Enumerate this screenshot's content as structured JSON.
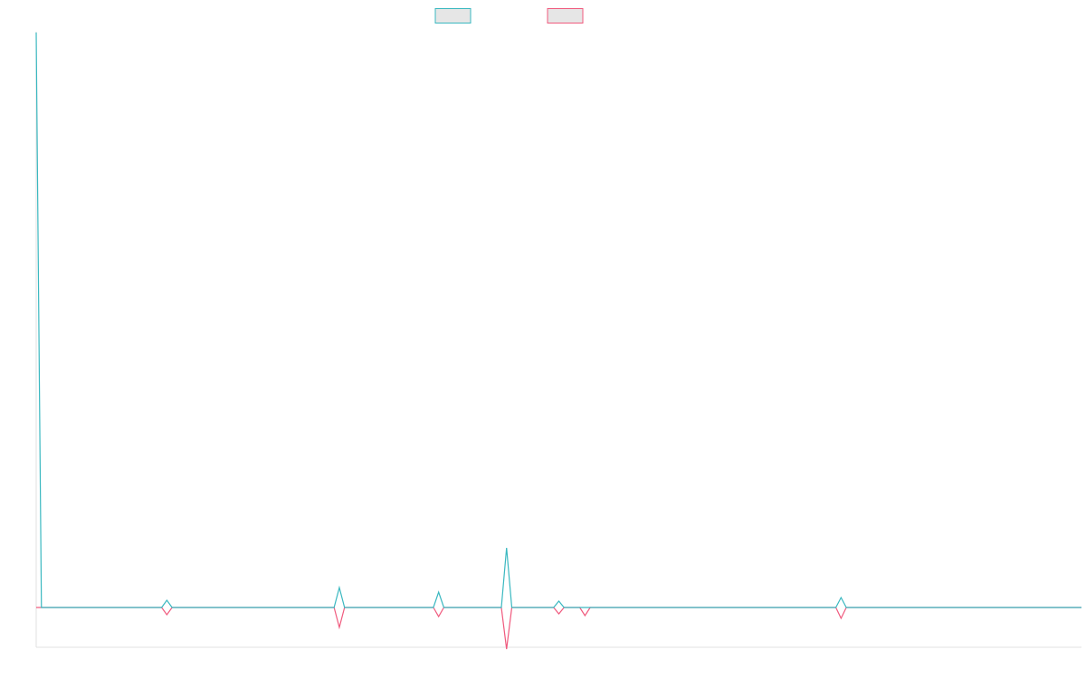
{
  "chart_data": {
    "type": "line",
    "x": [
      0,
      1,
      24,
      25,
      26,
      57,
      58,
      59,
      76,
      77,
      78,
      89,
      90,
      91,
      99,
      100,
      101,
      104,
      105,
      106,
      153,
      154,
      155,
      200
    ],
    "series": [
      {
        "color": "#f05a7e",
        "values": [
          0,
          0,
          0,
          -8,
          0,
          0,
          -22,
          0,
          0,
          -10,
          0,
          0,
          -46,
          0,
          0,
          -7,
          0,
          0,
          -9,
          0,
          0,
          -12,
          0,
          0
        ]
      },
      {
        "color": "#3ab8c0",
        "values": [
          636,
          0,
          0,
          8,
          0,
          0,
          22,
          0,
          0,
          17,
          0,
          0,
          66,
          0,
          0,
          7,
          0,
          0,
          0,
          0,
          0,
          11,
          0,
          0
        ]
      }
    ],
    "xlim": [
      0,
      200
    ],
    "ylim": [
      -44,
      637
    ]
  }
}
